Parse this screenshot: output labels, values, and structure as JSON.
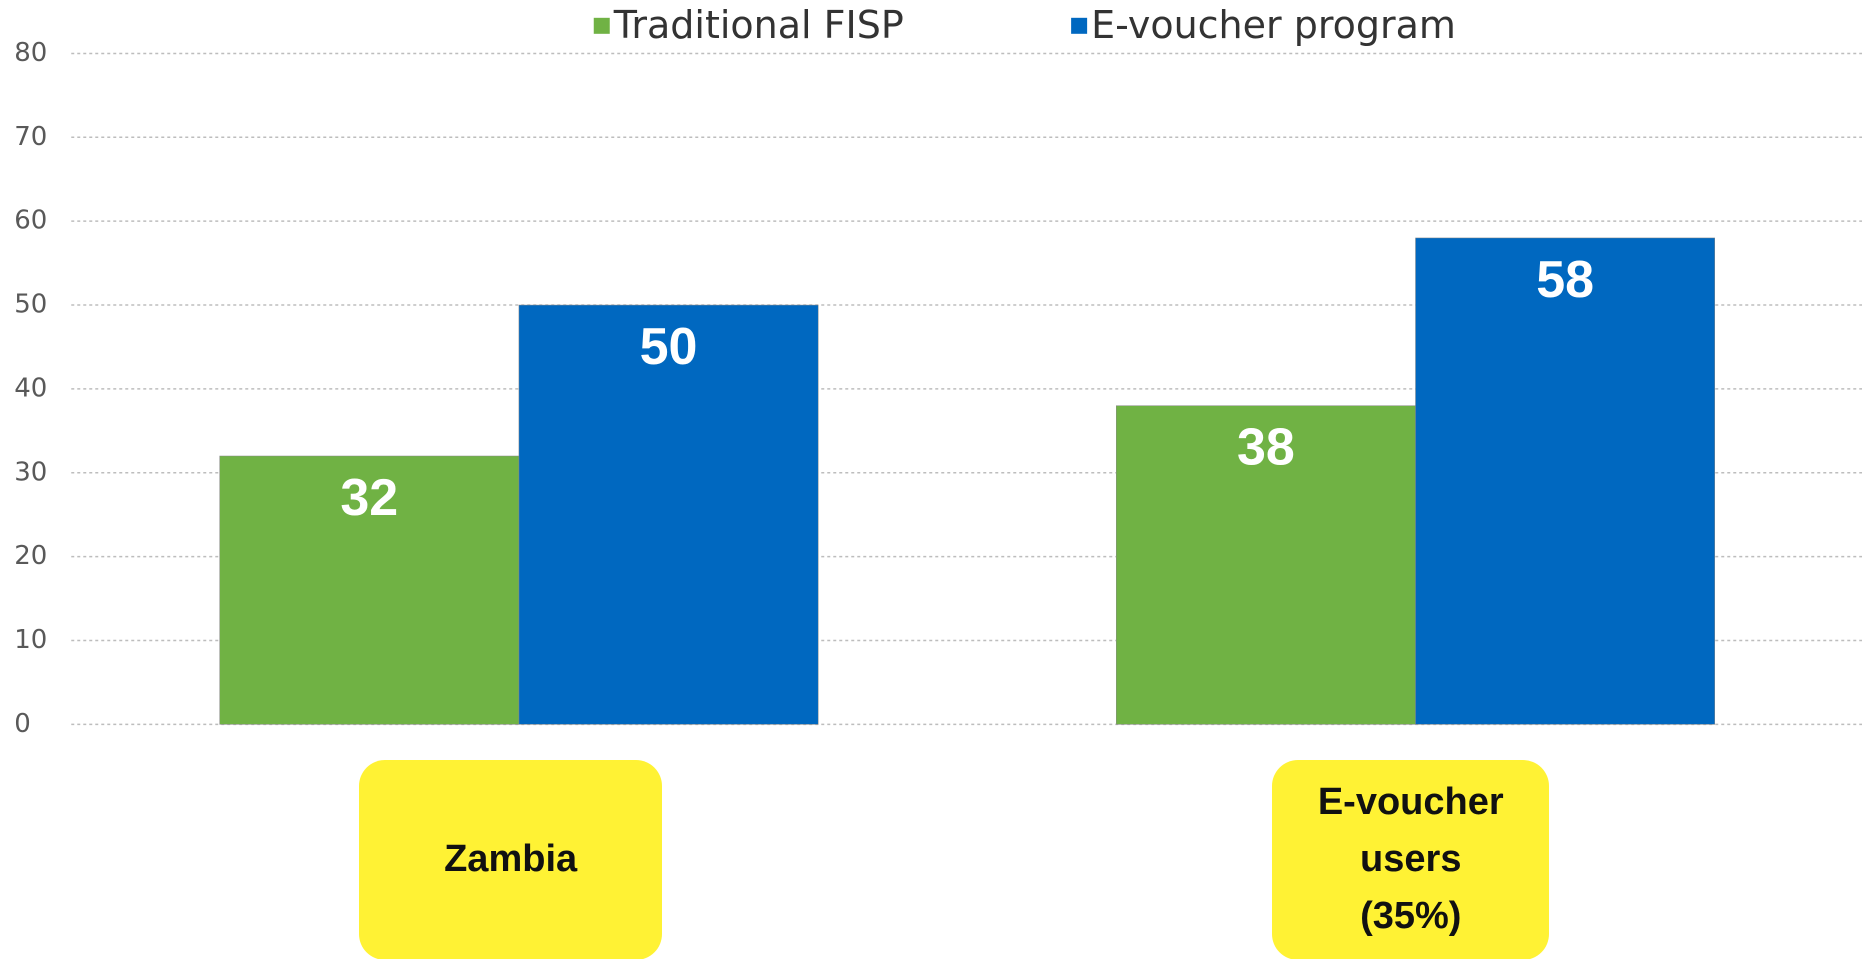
{
  "chart_data": {
    "type": "bar",
    "categories": [
      "Zambia",
      "E-voucher users (35%)"
    ],
    "series": [
      {
        "name": "Traditional FISP",
        "color": "#70b244",
        "values": [
          32,
          38
        ]
      },
      {
        "name": "E-voucher program",
        "color": "#0068c0",
        "values": [
          50,
          58
        ]
      }
    ],
    "ylim": [
      0,
      80
    ],
    "yticks": [
      0,
      10,
      20,
      30,
      40,
      50,
      60,
      70,
      80
    ],
    "grid": true,
    "legend": "top"
  }
}
